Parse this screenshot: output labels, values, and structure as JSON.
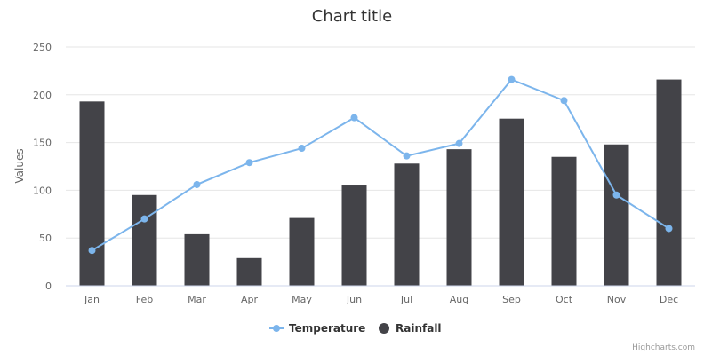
{
  "chart_data": {
    "type": "bar",
    "title": "Chart title",
    "ylabel": "Values",
    "xlabel": "",
    "ylim": [
      0,
      250
    ],
    "yticks": [
      0,
      50,
      100,
      150,
      200,
      250
    ],
    "categories": [
      "Jan",
      "Feb",
      "Mar",
      "Apr",
      "May",
      "Jun",
      "Jul",
      "Aug",
      "Sep",
      "Oct",
      "Nov",
      "Dec"
    ],
    "grid": true,
    "legend_position": "bottom-center",
    "series": [
      {
        "name": "Temperature",
        "type": "line",
        "color": "#7cb5ec",
        "values": [
          37,
          70,
          106,
          129,
          144,
          176,
          136,
          149,
          216,
          194,
          95,
          60
        ]
      },
      {
        "name": "Rainfall",
        "type": "bar",
        "color": "#434348",
        "values": [
          193,
          95,
          54,
          29,
          71,
          105,
          128,
          143,
          175,
          135,
          148,
          216
        ]
      }
    ]
  },
  "credits": "Highcharts.com"
}
